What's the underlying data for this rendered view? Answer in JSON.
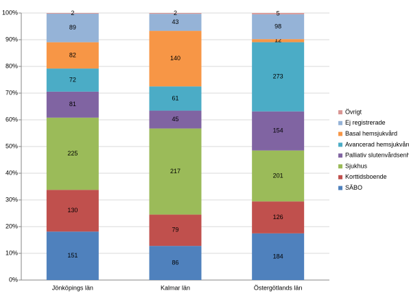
{
  "chart_data": {
    "type": "bar",
    "stacked": "percent",
    "categories": [
      "Jönköpings län",
      "Kalmar län",
      "Östergötlands län"
    ],
    "series": [
      {
        "name": "SÄBO",
        "color": "#4f81bd",
        "values": [
          151,
          86,
          184
        ]
      },
      {
        "name": "Korttidsboende",
        "color": "#c0504d",
        "values": [
          130,
          79,
          126
        ]
      },
      {
        "name": "Sjukhus",
        "color": "#9bbb59",
        "values": [
          225,
          217,
          201
        ]
      },
      {
        "name": "Palliativ slutenvårdsenhet",
        "color": "#8064a2",
        "values": [
          81,
          45,
          154
        ]
      },
      {
        "name": "Avancerad hemsjukvård",
        "color": "#4bacc6",
        "values": [
          72,
          61,
          273
        ]
      },
      {
        "name": "Basal hemsjukvård",
        "color": "#f79646",
        "values": [
          82,
          140,
          12
        ]
      },
      {
        "name": "Ej registrerade",
        "color": "#95b3d7",
        "values": [
          89,
          43,
          98
        ]
      },
      {
        "name": "Övrigt",
        "color": "#d99694",
        "values": [
          2,
          2,
          5
        ]
      }
    ],
    "ylim": [
      0,
      100
    ],
    "yticks": [
      {
        "value": 0,
        "label": "0%"
      },
      {
        "value": 10,
        "label": "10%"
      },
      {
        "value": 20,
        "label": "20%"
      },
      {
        "value": 30,
        "label": "30%"
      },
      {
        "value": 40,
        "label": "40%"
      },
      {
        "value": 50,
        "label": "50%"
      },
      {
        "value": 60,
        "label": "60%"
      },
      {
        "value": 70,
        "label": "70%"
      },
      {
        "value": 80,
        "label": "80%"
      },
      {
        "value": 90,
        "label": "90%"
      },
      {
        "value": 100,
        "label": "100%"
      }
    ],
    "grid": true,
    "legend": "right"
  }
}
